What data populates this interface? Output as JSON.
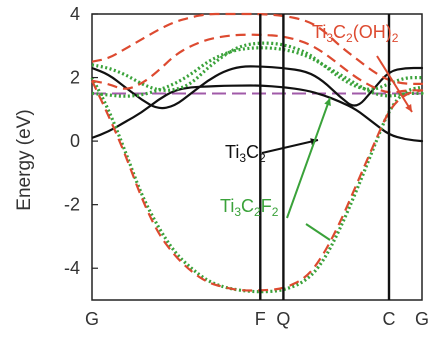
{
  "chart_data": {
    "type": "line",
    "ylabel": "Energy (eV)",
    "ylim": [
      -5,
      4
    ],
    "yticks": [
      -4,
      -2,
      0,
      2,
      4
    ],
    "kpoints": [
      {
        "name": "G",
        "pos": 0
      },
      {
        "name": "F",
        "pos": 0.51
      },
      {
        "name": "Q",
        "pos": 0.58
      },
      {
        "name": "C",
        "pos": 0.9
      },
      {
        "name": "G",
        "pos": 1
      }
    ],
    "fermi_level": 1.5,
    "colors": {
      "Ti3C2": "#111111",
      "Ti3C2F2": "#3aa23a",
      "Ti3C2(OH)2": "#dd4a30",
      "fermi": "#a05aa8"
    },
    "series": [
      {
        "compound": "Ti3C2",
        "style": "solid",
        "x": [
          0,
          0.05,
          0.1,
          0.15,
          0.2,
          0.25,
          0.3,
          0.35,
          0.4,
          0.45,
          0.51,
          0.58,
          0.65,
          0.7,
          0.75,
          0.8,
          0.85,
          0.9,
          0.95,
          1
        ],
        "y": [
          0.1,
          0.3,
          0.6,
          0.9,
          1.3,
          1.6,
          1.7,
          1.72,
          1.74,
          1.75,
          1.75,
          1.7,
          1.6,
          1.45,
          1.25,
          1.0,
          0.6,
          0.2,
          0.05,
          0.0
        ]
      },
      {
        "compound": "Ti3C2",
        "style": "solid",
        "x": [
          0,
          0.05,
          0.1,
          0.15,
          0.2,
          0.25,
          0.3,
          0.35,
          0.4,
          0.45,
          0.51,
          0.58,
          0.65,
          0.7,
          0.75,
          0.8,
          0.85,
          0.9,
          0.95,
          1
        ],
        "y": [
          2.3,
          2.1,
          1.7,
          1.3,
          1.0,
          1.1,
          1.5,
          1.9,
          2.2,
          2.35,
          2.35,
          2.3,
          2.2,
          1.9,
          1.4,
          1.0,
          1.6,
          2.2,
          2.3,
          2.3
        ]
      },
      {
        "compound": "Ti3C2F2",
        "style": "dotted",
        "x": [
          0,
          0.05,
          0.1,
          0.15,
          0.2,
          0.25,
          0.3,
          0.35,
          0.4,
          0.45,
          0.51,
          0.58,
          0.65,
          0.7,
          0.75,
          0.8,
          0.85,
          0.9,
          0.95,
          1
        ],
        "y": [
          2.0,
          1.0,
          -0.3,
          -1.7,
          -2.7,
          -3.5,
          -4.0,
          -4.4,
          -4.6,
          -4.7,
          -4.75,
          -4.7,
          -4.4,
          -3.8,
          -2.8,
          -1.6,
          -0.3,
          1.0,
          1.6,
          1.7
        ]
      },
      {
        "compound": "Ti3C2F2",
        "style": "dotted",
        "x": [
          0,
          0.05,
          0.1,
          0.15,
          0.2,
          0.25,
          0.3,
          0.35,
          0.4,
          0.45,
          0.51,
          0.58,
          0.65,
          0.7,
          0.75,
          0.8,
          0.85,
          0.9,
          0.95,
          1
        ],
        "y": [
          2.4,
          2.3,
          2.1,
          1.8,
          1.6,
          1.6,
          1.8,
          2.3,
          2.7,
          3.0,
          3.1,
          3.05,
          2.8,
          2.4,
          2.0,
          1.7,
          1.6,
          1.8,
          2.0,
          2.0
        ]
      },
      {
        "compound": "Ti3C2F2",
        "style": "dotted",
        "x": [
          0,
          0.05,
          0.1,
          0.15,
          0.2,
          0.25,
          0.3,
          0.35,
          0.4,
          0.45,
          0.51,
          0.58,
          0.65,
          0.7,
          0.75,
          0.8,
          0.85,
          0.9,
          0.95,
          1
        ],
        "y": [
          1.5,
          1.45,
          1.4,
          1.45,
          1.6,
          1.8,
          2.1,
          2.5,
          2.75,
          2.9,
          2.95,
          2.9,
          2.7,
          2.4,
          2.1,
          1.8,
          1.5,
          1.4,
          1.5,
          1.5
        ]
      },
      {
        "compound": "Ti3C2(OH)2",
        "style": "dashed",
        "x": [
          0,
          0.05,
          0.1,
          0.15,
          0.2,
          0.25,
          0.3,
          0.35,
          0.4,
          0.45,
          0.51,
          0.58,
          0.65,
          0.7,
          0.75,
          0.8,
          0.85,
          0.9,
          0.95,
          1
        ],
        "y": [
          1.9,
          0.8,
          -0.4,
          -1.8,
          -2.9,
          -3.6,
          -4.1,
          -4.45,
          -4.6,
          -4.7,
          -4.7,
          -4.65,
          -4.3,
          -3.6,
          -2.6,
          -1.4,
          -0.2,
          1.0,
          1.5,
          1.6
        ]
      },
      {
        "compound": "Ti3C2(OH)2",
        "style": "dashed",
        "x": [
          0,
          0.05,
          0.1,
          0.15,
          0.2,
          0.25,
          0.3,
          0.35,
          0.4,
          0.45,
          0.51,
          0.58,
          0.65,
          0.7,
          0.75,
          0.8,
          0.85,
          0.9,
          0.95,
          1
        ],
        "y": [
          2.5,
          2.6,
          2.9,
          3.2,
          3.5,
          3.75,
          3.9,
          4.0,
          4.0,
          4.0,
          4.0,
          3.95,
          3.8,
          3.5,
          3.0,
          2.6,
          2.2,
          1.9,
          1.8,
          1.8
        ]
      },
      {
        "compound": "Ti3C2(OH)2",
        "style": "dashed",
        "x": [
          0,
          0.05,
          0.1,
          0.15,
          0.2,
          0.25,
          0.3,
          0.35,
          0.4,
          0.45,
          0.51,
          0.58,
          0.65,
          0.7,
          0.75,
          0.8,
          0.85,
          0.9,
          0.95,
          1
        ],
        "y": [
          1.9,
          1.8,
          1.6,
          1.8,
          2.2,
          2.7,
          3.0,
          3.2,
          3.3,
          3.35,
          3.35,
          3.3,
          3.1,
          2.8,
          2.4,
          2.0,
          1.7,
          1.5,
          1.6,
          1.6
        ]
      }
    ],
    "annotations": [
      {
        "text": "Ti3C2",
        "base": "Ti",
        "sub1": "3",
        "mid": "C",
        "sub2": "2",
        "tail": "",
        "color": "#111111"
      },
      {
        "text": "Ti3C2F2",
        "base": "Ti",
        "sub1": "3",
        "mid": "C",
        "sub2": "2",
        "tail": "F",
        "sub3": "2",
        "color": "#3aa23a"
      },
      {
        "text": "Ti3C2(OH)2",
        "base": "Ti",
        "sub1": "3",
        "mid": "C",
        "sub2": "2",
        "tail": "(OH)",
        "sub3": "2",
        "color": "#dd4a30"
      }
    ]
  }
}
